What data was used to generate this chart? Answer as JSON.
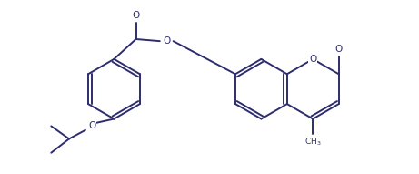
{
  "background_color": "#ffffff",
  "line_color": "#2d2d6e",
  "line_width": 1.4,
  "fig_width": 4.61,
  "fig_height": 1.91,
  "dpi": 100,
  "xlim": [
    0,
    10.5
  ],
  "ylim": [
    0,
    4.2
  ]
}
